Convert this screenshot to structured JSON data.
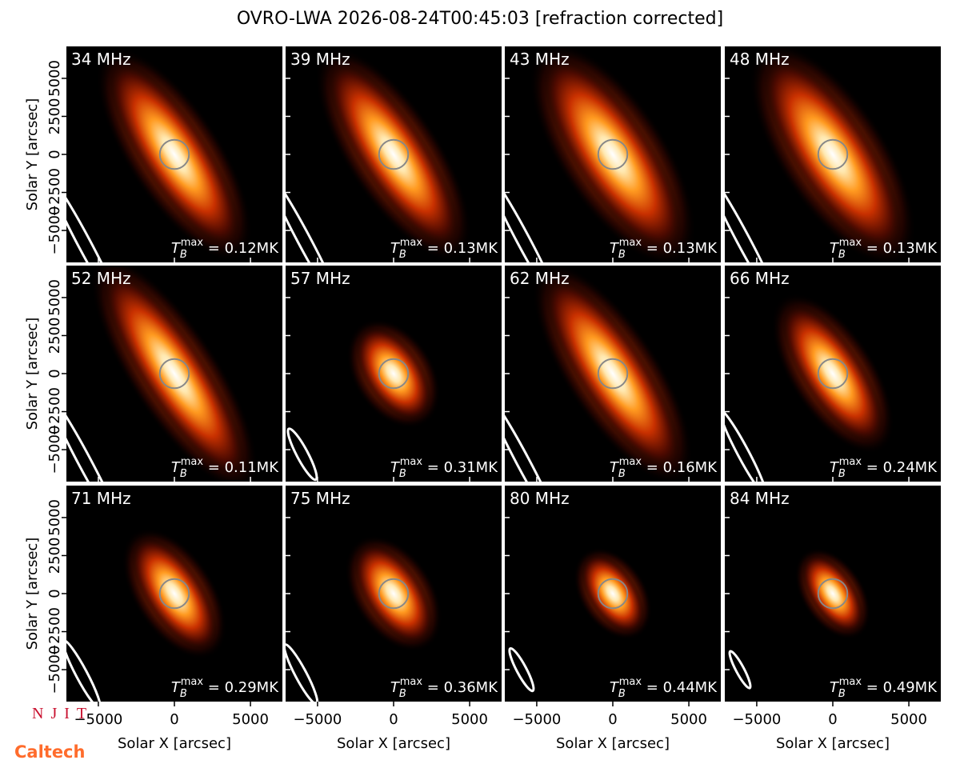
{
  "title": "OVRO-LWA 2026-08-24T00:45:03 [refraction corrected]",
  "xlabel": "Solar X [arcsec]",
  "ylabel": "Solar Y [arcsec]",
  "xlim": [
    -7100,
    7100
  ],
  "ylim": [
    -7100,
    7100
  ],
  "xticks": [
    {
      "value": -5000,
      "label": "−5000"
    },
    0,
    5000
  ],
  "yticks": [
    {
      "value": -5000,
      "label": "−5000"
    },
    {
      "value": -2500,
      "label": "−2500"
    },
    0,
    2500,
    5000
  ],
  "tmax_symbol": "T",
  "tmax_sub": "B",
  "tmax_sup": "max",
  "panels": [
    {
      "label": "34 MHz",
      "tmax": " = 0.12MK"
    },
    {
      "label": "39 MHz",
      "tmax": " = 0.13MK"
    },
    {
      "label": "43 MHz",
      "tmax": " = 0.13MK"
    },
    {
      "label": "48 MHz",
      "tmax": " = 0.13MK"
    },
    {
      "label": "52 MHz",
      "tmax": " = 0.11MK"
    },
    {
      "label": "57 MHz",
      "tmax": " = 0.31MK"
    },
    {
      "label": "62 MHz",
      "tmax": " = 0.16MK"
    },
    {
      "label": "66 MHz",
      "tmax": " = 0.24MK"
    },
    {
      "label": "71 MHz",
      "tmax": " = 0.29MK"
    },
    {
      "label": "75 MHz",
      "tmax": " = 0.36MK"
    },
    {
      "label": "80 MHz",
      "tmax": " = 0.44MK"
    },
    {
      "label": "84 MHz",
      "tmax": " = 0.49MK"
    }
  ],
  "logos": {
    "njit": "NJIT",
    "caltech": "Caltech"
  }
}
